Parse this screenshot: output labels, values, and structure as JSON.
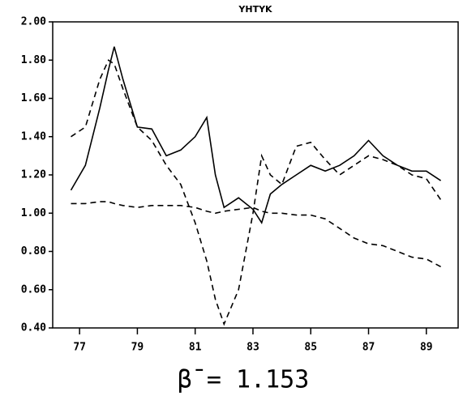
{
  "chart_data": {
    "type": "line",
    "title": "YHTYK",
    "annotation": "β̄ = 1.153",
    "x": [
      76.7,
      77.2,
      77.7,
      78.0,
      78.2,
      78.5,
      79.0,
      79.5,
      80.0,
      80.5,
      81.0,
      81.4,
      81.7,
      82.0,
      82.5,
      83.0,
      83.3,
      83.6,
      84.0,
      84.5,
      85.0,
      85.5,
      86.0,
      86.5,
      87.0,
      87.5,
      88.0,
      88.5,
      89.0,
      89.5
    ],
    "series": [
      {
        "color": "#000000",
        "dash": "none",
        "values": [
          1.12,
          1.25,
          1.55,
          1.75,
          1.87,
          1.7,
          1.45,
          1.44,
          1.3,
          1.33,
          1.4,
          1.5,
          1.2,
          1.03,
          1.08,
          1.02,
          0.95,
          1.1,
          1.15,
          1.2,
          1.25,
          1.22,
          1.25,
          1.3,
          1.38,
          1.3,
          1.25,
          1.22,
          1.22,
          1.17
        ]
      },
      {
        "color": "#000000",
        "dash": "7,5",
        "values": [
          1.4,
          1.45,
          1.7,
          1.8,
          1.78,
          1.65,
          1.45,
          1.38,
          1.25,
          1.15,
          0.95,
          0.75,
          0.55,
          0.42,
          0.6,
          1.0,
          1.3,
          1.2,
          1.15,
          1.35,
          1.37,
          1.28,
          1.2,
          1.25,
          1.3,
          1.28,
          1.25,
          1.2,
          1.18,
          1.07
        ]
      },
      {
        "color": "#000000",
        "dash": "7,5",
        "values": [
          1.05,
          1.05,
          1.06,
          1.06,
          1.05,
          1.04,
          1.03,
          1.04,
          1.04,
          1.04,
          1.03,
          1.01,
          1.0,
          1.01,
          1.02,
          1.03,
          1.01,
          1.0,
          1.0,
          0.99,
          0.99,
          0.97,
          0.92,
          0.87,
          0.84,
          0.83,
          0.8,
          0.77,
          0.76,
          0.72
        ]
      }
    ],
    "xlim": [
      76.07,
      90.1
    ],
    "xticks": [
      77,
      79,
      81,
      83,
      85,
      87,
      89
    ],
    "ylim": [
      0.4,
      2.0
    ],
    "yticks": [
      {
        "value": 0.4,
        "label": "0.40"
      },
      {
        "value": 0.6,
        "label": "0.60"
      },
      {
        "value": 0.8,
        "label": "0.80"
      },
      {
        "value": 1.0,
        "label": "1.00"
      },
      {
        "value": 1.2,
        "label": "1.20"
      },
      {
        "value": 1.4,
        "label": "1.40"
      },
      {
        "value": 1.6,
        "label": "1.60"
      },
      {
        "value": 1.8,
        "label": "1.80"
      },
      {
        "value": 2.0,
        "label": "2.00"
      }
    ],
    "grid": false
  }
}
